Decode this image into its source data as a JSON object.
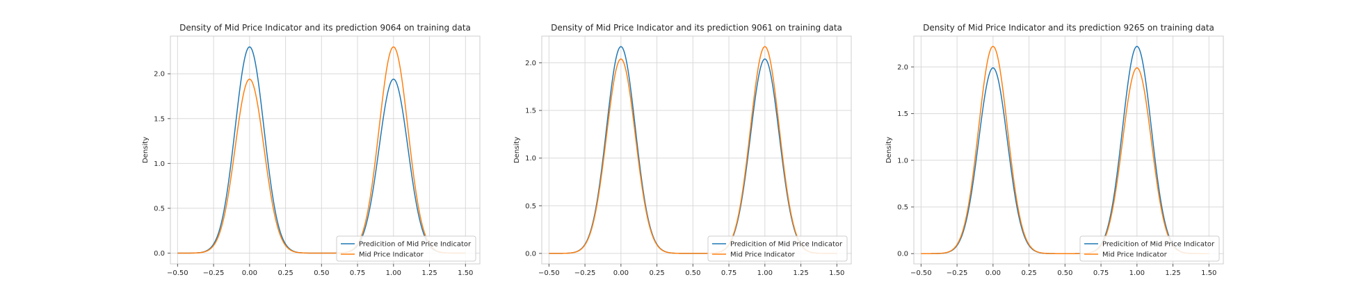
{
  "chart_data": [
    {
      "type": "line",
      "title": "Density of Mid Price Indicator and its prediction 9064 on training data",
      "xlabel": "",
      "ylabel": "Density",
      "xlim": [
        -0.55,
        1.6
      ],
      "ylim": [
        -0.12,
        2.42
      ],
      "xticks": [
        -0.5,
        -0.25,
        0.0,
        0.25,
        0.5,
        0.75,
        1.0,
        1.25,
        1.5
      ],
      "xtick_labels": [
        "−0.50",
        "−0.25",
        "0.00",
        "0.25",
        "0.50",
        "0.75",
        "1.00",
        "1.25",
        "1.50"
      ],
      "yticks": [
        0.0,
        0.5,
        1.0,
        1.5,
        2.0
      ],
      "ytick_labels": [
        "0.0",
        "0.5",
        "1.0",
        "1.5",
        "2.0"
      ],
      "grid": true,
      "legend_position": "lower-right",
      "series": [
        {
          "name": "Predicition of Mid Price Indicator",
          "color": "#1f77b4",
          "peaks": [
            {
              "x": 0.0,
              "y": 2.3
            },
            {
              "x": 1.0,
              "y": 1.94
            }
          ]
        },
        {
          "name": "Mid Price Indicator",
          "color": "#ff7f0e",
          "peaks": [
            {
              "x": 0.0,
              "y": 1.94
            },
            {
              "x": 1.0,
              "y": 2.3
            }
          ]
        }
      ],
      "x_range": [
        -0.5,
        1.5
      ]
    },
    {
      "type": "line",
      "title": "Density of Mid Price Indicator and its prediction 9061 on training data",
      "xlabel": "",
      "ylabel": "Density",
      "xlim": [
        -0.55,
        1.6
      ],
      "ylim": [
        -0.11,
        2.28
      ],
      "xticks": [
        -0.5,
        -0.25,
        0.0,
        0.25,
        0.5,
        0.75,
        1.0,
        1.25,
        1.5
      ],
      "xtick_labels": [
        "−0.50",
        "−0.25",
        "0.00",
        "0.25",
        "0.50",
        "0.75",
        "1.00",
        "1.25",
        "1.50"
      ],
      "yticks": [
        0.0,
        0.5,
        1.0,
        1.5,
        2.0
      ],
      "ytick_labels": [
        "0.0",
        "0.5",
        "1.0",
        "1.5",
        "2.0"
      ],
      "grid": true,
      "legend_position": "lower-right",
      "series": [
        {
          "name": "Predicition of Mid Price Indicator",
          "color": "#1f77b4",
          "peaks": [
            {
              "x": 0.0,
              "y": 2.17
            },
            {
              "x": 1.0,
              "y": 2.04
            }
          ]
        },
        {
          "name": "Mid Price Indicator",
          "color": "#ff7f0e",
          "peaks": [
            {
              "x": 0.0,
              "y": 2.04
            },
            {
              "x": 1.0,
              "y": 2.17
            }
          ]
        }
      ],
      "x_range": [
        -0.5,
        1.5
      ]
    },
    {
      "type": "line",
      "title": "Density of Mid Price Indicator and its prediction 9265 on training data",
      "xlabel": "",
      "ylabel": "Density",
      "xlim": [
        -0.55,
        1.6
      ],
      "ylim": [
        -0.11,
        2.33
      ],
      "xticks": [
        -0.5,
        -0.25,
        0.0,
        0.25,
        0.5,
        0.75,
        1.0,
        1.25,
        1.5
      ],
      "xtick_labels": [
        "−0.50",
        "−0.25",
        "0.00",
        "0.25",
        "0.50",
        "0.75",
        "1.00",
        "1.25",
        "1.50"
      ],
      "yticks": [
        0.0,
        0.5,
        1.0,
        1.5,
        2.0
      ],
      "ytick_labels": [
        "0.0",
        "0.5",
        "1.0",
        "1.5",
        "2.0"
      ],
      "grid": true,
      "legend_position": "lower-right",
      "series": [
        {
          "name": "Predicition of Mid Price Indicator",
          "color": "#1f77b4",
          "peaks": [
            {
              "x": 0.0,
              "y": 1.99
            },
            {
              "x": 1.0,
              "y": 2.22
            }
          ]
        },
        {
          "name": "Mid Price Indicator",
          "color": "#ff7f0e",
          "peaks": [
            {
              "x": 0.0,
              "y": 2.22
            },
            {
              "x": 1.0,
              "y": 1.99
            }
          ]
        }
      ],
      "x_range": [
        -0.5,
        1.5
      ]
    }
  ]
}
